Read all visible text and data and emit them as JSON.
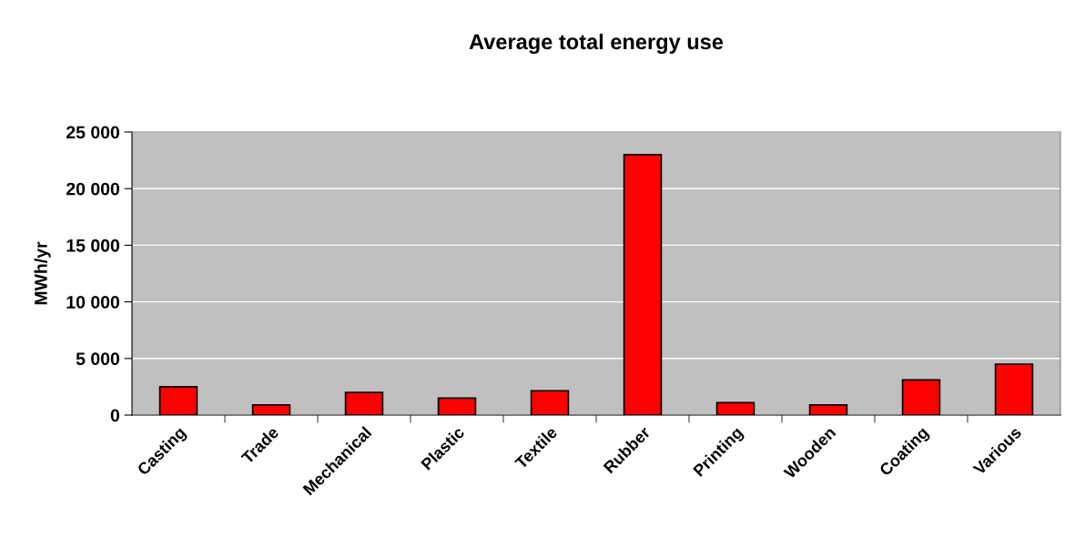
{
  "chart_data": {
    "type": "bar",
    "title": "Average total energy use",
    "ylabel": "MWh/yr",
    "categories": [
      "Casting",
      "Trade",
      "Mechanical",
      "Plastic",
      "Textile",
      "Rubber",
      "Printing",
      "Wooden",
      "Coating",
      "Various"
    ],
    "values": [
      2500,
      900,
      2000,
      1500,
      2150,
      23000,
      1100,
      900,
      3100,
      4500
    ],
    "color": "#ff0000",
    "ylim": [
      0,
      25000
    ],
    "yticks": [
      {
        "value": 0,
        "label": "0"
      },
      {
        "value": 5000,
        "label": "5 000"
      },
      {
        "value": 10000,
        "label": "10 000"
      },
      {
        "value": 15000,
        "label": "15 000"
      },
      {
        "value": 20000,
        "label": "20 000"
      },
      {
        "value": 25000,
        "label": "25 000"
      }
    ],
    "grid": "y",
    "legend": false
  }
}
